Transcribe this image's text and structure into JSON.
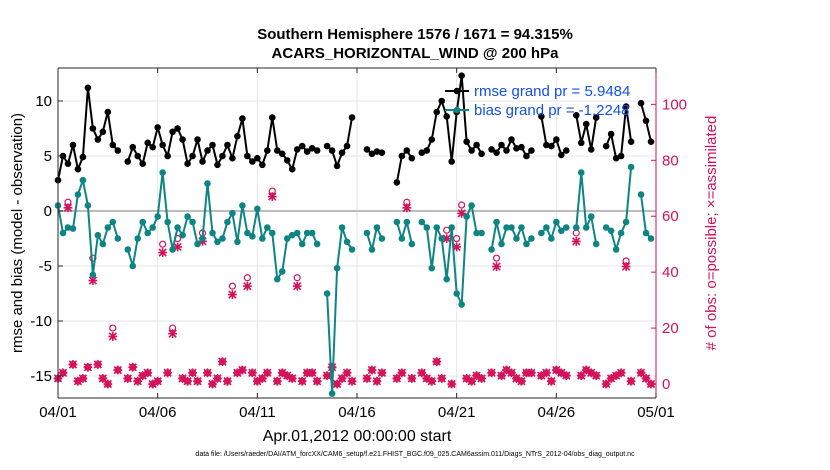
{
  "chart_data": {
    "type": "line",
    "title": "Southern Hemisphere 1576 / 1671 = 94.315%",
    "subtitle": "ACARS_HORIZONTAL_WIND @ 200 hPa",
    "xlabel": "Apr.01,2012 00:00:00 start",
    "ylabel_left": "rmse and bias (model - observation)",
    "ylabel_right": "# of obs: o=possible; ×=assimilated",
    "footnote": "data file: /Users/raeder/DAI/ATM_forcXX/CAM6_setup/f.e21.FHIST_BGC.f09_025.CAM6assim.011/Diags_NTrS_2012-04/obs_diag_output.nc",
    "x_ticks": [
      "04/01",
      "04/06",
      "04/11",
      "04/16",
      "04/21",
      "04/26",
      "05/01"
    ],
    "x_range_days": [
      0,
      30
    ],
    "ylim_left": [
      -17,
      13
    ],
    "yticks_left": [
      -15,
      -10,
      -5,
      0,
      5,
      10
    ],
    "ylim_right": [
      -5,
      113
    ],
    "yticks_right": [
      0,
      20,
      40,
      60,
      80,
      100
    ],
    "grid": true,
    "legend_position": "top-right",
    "colors": {
      "rmse": "#000000",
      "bias": "#0e8583",
      "obs": "#d4115a",
      "zero_line": "#bdbdbd"
    },
    "legend": [
      "rmse grand pr = 5.9484",
      "bias grand pr = -1.2248"
    ],
    "series": [
      {
        "name": "rmse grand pr = 5.9484",
        "axis": "left",
        "x": [
          0.0,
          0.25,
          0.5,
          0.75,
          1.0,
          1.25,
          1.5,
          1.75,
          2.0,
          2.25,
          2.5,
          2.75,
          3.0,
          3.25,
          3.5,
          3.75,
          4.0,
          4.25,
          4.5,
          4.75,
          5.0,
          5.25,
          5.5,
          5.75,
          6.0,
          6.25,
          6.5,
          6.75,
          7.0,
          7.25,
          7.5,
          7.75,
          8.0,
          8.25,
          8.5,
          8.75,
          9.0,
          9.25,
          9.5,
          9.75,
          10.0,
          10.25,
          10.5,
          10.75,
          11.0,
          11.25,
          11.5,
          11.75,
          12.0,
          12.25,
          12.5,
          12.75,
          13.0,
          13.25,
          13.5,
          13.75,
          14.0,
          14.25,
          14.5,
          14.75,
          15.0,
          15.25,
          15.5,
          15.75,
          16.0,
          16.25,
          16.5,
          16.75,
          17.0,
          17.25,
          17.5,
          17.75,
          18.0,
          18.25,
          18.5,
          18.75,
          19.0,
          19.25,
          19.5,
          19.75,
          20.0,
          20.25,
          20.5,
          20.75,
          21.0,
          21.25,
          21.5,
          21.75,
          22.0,
          22.25,
          22.5,
          22.75,
          23.0,
          23.25,
          23.5,
          23.75,
          24.0,
          24.25,
          24.5,
          24.75,
          25.0,
          25.25,
          25.5,
          25.75,
          26.0,
          26.25,
          26.5,
          26.75,
          27.0,
          27.25,
          27.5,
          27.75,
          28.0,
          28.25,
          28.5,
          28.75,
          29.0,
          29.25,
          29.5,
          29.75
        ],
        "y": [
          2.8,
          5.0,
          4.3,
          6.0,
          3.8,
          4.9,
          11.2,
          7.5,
          6.5,
          7.2,
          9.0,
          6.0,
          5.5,
          null,
          4.5,
          5.8,
          5.0,
          4.3,
          6.2,
          5.8,
          7.6,
          6.0,
          5.0,
          7.2,
          7.5,
          6.5,
          4.3,
          5.0,
          6.5,
          4.5,
          5.5,
          6.0,
          4.2,
          5.0,
          6.0,
          4.8,
          6.8,
          8.4,
          5.0,
          4.5,
          4.8,
          4.2,
          5.5,
          8.5,
          5.5,
          5.2,
          4.6,
          3.8,
          5.6,
          5.9,
          5.4,
          5.7,
          5.5,
          null,
          5.9,
          5.5,
          4.1,
          5.3,
          5.9,
          8.5,
          null,
          null,
          5.6,
          5.2,
          5.4,
          5.3,
          null,
          null,
          2.6,
          5.0,
          5.5,
          4.8,
          null,
          5.3,
          5.5,
          6.5,
          9.0,
          10.0,
          8.6,
          4.5,
          9.0,
          12.3,
          6.3,
          5.5,
          6.0,
          5.2,
          null,
          5.6,
          5.3,
          6.0,
          5.5,
          6.5,
          5.7,
          5.8,
          5.0,
          5.5,
          null,
          8.6,
          6.0,
          5.9,
          6.5,
          5.1,
          5.5,
          null,
          8.7,
          6.2,
          7.9,
          5.6,
          8.5,
          null,
          5.9,
          7.0,
          4.8,
          5.0,
          9.5,
          6.3,
          null,
          9.8,
          8.2,
          6.3
        ]
      },
      {
        "name": "bias grand pr = -1.2248",
        "axis": "left",
        "x": [
          0.0,
          0.25,
          0.5,
          0.75,
          1.0,
          1.25,
          1.5,
          1.75,
          2.0,
          2.25,
          2.5,
          2.75,
          3.0,
          3.25,
          3.5,
          3.75,
          4.0,
          4.25,
          4.5,
          4.75,
          5.0,
          5.25,
          5.5,
          5.75,
          6.0,
          6.25,
          6.5,
          6.75,
          7.0,
          7.25,
          7.5,
          7.75,
          8.0,
          8.25,
          8.5,
          8.75,
          9.0,
          9.25,
          9.5,
          9.75,
          10.0,
          10.25,
          10.5,
          10.75,
          11.0,
          11.25,
          11.5,
          11.75,
          12.0,
          12.25,
          12.5,
          12.75,
          13.0,
          13.25,
          13.5,
          13.75,
          14.0,
          14.25,
          14.5,
          14.75,
          15.0,
          15.25,
          15.5,
          15.75,
          16.0,
          16.25,
          16.5,
          16.75,
          17.0,
          17.25,
          17.5,
          17.75,
          18.0,
          18.25,
          18.5,
          18.75,
          19.0,
          19.25,
          19.5,
          19.75,
          20.0,
          20.25,
          20.5,
          20.75,
          21.0,
          21.25,
          21.5,
          21.75,
          22.0,
          22.25,
          22.5,
          22.75,
          23.0,
          23.25,
          23.5,
          23.75,
          24.0,
          24.25,
          24.5,
          24.75,
          25.0,
          25.25,
          25.5,
          25.75,
          26.0,
          26.25,
          26.5,
          26.75,
          27.0,
          27.25,
          27.5,
          27.75,
          28.0,
          28.25,
          28.5,
          28.75,
          29.0,
          29.25,
          29.5,
          29.75
        ],
        "y": [
          0.5,
          -2.0,
          -1.5,
          -1.6,
          1.5,
          2.8,
          0.5,
          -5.8,
          -2.2,
          -3.0,
          -1.5,
          -1.0,
          -2.5,
          null,
          -3.5,
          -5.0,
          -2.5,
          -1.0,
          -2.0,
          -1.5,
          -0.5,
          3.5,
          -1.0,
          -3.5,
          -1.5,
          -2.2,
          -0.5,
          -1.0,
          -3.0,
          -2.5,
          2.5,
          -2.0,
          -2.8,
          -2.5,
          -1.0,
          -0.2,
          -2.8,
          0.5,
          -2.0,
          -2.3,
          0.2,
          -2.5,
          -1.5,
          -2.0,
          -6.2,
          -5.5,
          -2.5,
          -2.2,
          -2.0,
          -3.0,
          -2.0,
          -2.0,
          -3.0,
          null,
          -7.5,
          -16.6,
          -5.2,
          -1.5,
          -2.8,
          -3.5,
          null,
          null,
          -2.0,
          -3.5,
          -1.5,
          -2.5,
          null,
          null,
          -1.0,
          -2.5,
          -1.0,
          -3.0,
          null,
          -1.0,
          -1.5,
          -5.2,
          -1.5,
          -2.5,
          -6.2,
          -1.5,
          -7.5,
          -8.5,
          -0.5,
          0.5,
          -2.0,
          -2.0,
          null,
          -3.5,
          -1.0,
          -3.0,
          -1.5,
          -1.5,
          -2.5,
          -1.5,
          -3.0,
          -2.5,
          null,
          -2.0,
          -1.5,
          -2.5,
          -1.0,
          -1.8,
          -1.5,
          null,
          -1.5,
          3.5,
          -1.5,
          -0.5,
          -3.0,
          null,
          -1.5,
          -1.8,
          -3.5,
          -2.0,
          -1.0,
          4.0,
          null,
          1.5,
          -2.0,
          -2.5
        ]
      },
      {
        "name": "",
        "kind": "possible (o)",
        "axis": "right",
        "x": [
          0.0,
          0.25,
          0.5,
          0.75,
          1.0,
          1.25,
          1.5,
          1.75,
          2.0,
          2.25,
          2.5,
          2.75,
          3.0,
          3.25,
          3.5,
          3.75,
          4.0,
          4.25,
          4.5,
          4.75,
          5.0,
          5.25,
          5.5,
          5.75,
          6.0,
          6.25,
          6.5,
          6.75,
          7.0,
          7.25,
          7.5,
          7.75,
          8.0,
          8.25,
          8.5,
          8.75,
          9.0,
          9.25,
          9.5,
          9.75,
          10.0,
          10.25,
          10.5,
          10.75,
          11.0,
          11.25,
          11.5,
          11.75,
          12.0,
          12.25,
          12.5,
          12.75,
          13.0,
          13.25,
          13.5,
          13.75,
          14.0,
          14.25,
          14.5,
          14.75,
          15.0,
          15.25,
          15.5,
          15.75,
          16.0,
          16.25,
          16.5,
          16.75,
          17.0,
          17.25,
          17.5,
          17.75,
          18.0,
          18.25,
          18.5,
          18.75,
          19.0,
          19.25,
          19.5,
          19.75,
          20.0,
          20.25,
          20.5,
          20.75,
          21.0,
          21.25,
          21.5,
          21.75,
          22.0,
          22.25,
          22.5,
          22.75,
          23.0,
          23.25,
          23.5,
          23.75,
          24.0,
          24.25,
          24.5,
          24.75,
          25.0,
          25.25,
          25.5,
          25.75,
          26.0,
          26.25,
          26.5,
          26.75,
          27.0,
          27.25,
          27.5,
          27.75,
          28.0,
          28.25,
          28.5,
          28.75,
          29.0,
          29.25,
          29.5,
          29.75
        ],
        "y": [
          2,
          4,
          65,
          7,
          1,
          2,
          6,
          45,
          7,
          2,
          0,
          20,
          5,
          null,
          2,
          6,
          1,
          3,
          4,
          0,
          1,
          50,
          4,
          20,
          52,
          2,
          1,
          4,
          1,
          54,
          4,
          0,
          2,
          8,
          1,
          35,
          4,
          5,
          38,
          4,
          1,
          2,
          4,
          69,
          1,
          4,
          3,
          2,
          38,
          1,
          4,
          4,
          1,
          null,
          3,
          6,
          0,
          2,
          4,
          1,
          null,
          null,
          2,
          5,
          1,
          4,
          null,
          null,
          2,
          4,
          65,
          2,
          null,
          4,
          2,
          1,
          8,
          2,
          55,
          0,
          52,
          64,
          2,
          1,
          3,
          2,
          null,
          4,
          45,
          3,
          5,
          4,
          2,
          1,
          4,
          4,
          null,
          3,
          4,
          1,
          5,
          4,
          3,
          null,
          54,
          3,
          5,
          4,
          3,
          null,
          0,
          2,
          3,
          4,
          44,
          1,
          null,
          4,
          2,
          0
        ]
      },
      {
        "name": "",
        "kind": "assimilated (×)",
        "axis": "right",
        "x": [
          0.0,
          0.25,
          0.5,
          0.75,
          1.0,
          1.25,
          1.5,
          1.75,
          2.0,
          2.25,
          2.5,
          2.75,
          3.0,
          3.25,
          3.5,
          3.75,
          4.0,
          4.25,
          4.5,
          4.75,
          5.0,
          5.25,
          5.5,
          5.75,
          6.0,
          6.25,
          6.5,
          6.75,
          7.0,
          7.25,
          7.5,
          7.75,
          8.0,
          8.25,
          8.5,
          8.75,
          9.0,
          9.25,
          9.5,
          9.75,
          10.0,
          10.25,
          10.5,
          10.75,
          11.0,
          11.25,
          11.5,
          11.75,
          12.0,
          12.25,
          12.5,
          12.75,
          13.0,
          13.25,
          13.5,
          13.75,
          14.0,
          14.25,
          14.5,
          14.75,
          15.0,
          15.25,
          15.5,
          15.75,
          16.0,
          16.25,
          16.5,
          16.75,
          17.0,
          17.25,
          17.5,
          17.75,
          18.0,
          18.25,
          18.5,
          18.75,
          19.0,
          19.25,
          19.5,
          19.75,
          20.0,
          20.25,
          20.5,
          20.75,
          21.0,
          21.25,
          21.5,
          21.75,
          22.0,
          22.25,
          22.5,
          22.75,
          23.0,
          23.25,
          23.5,
          23.75,
          24.0,
          24.25,
          24.5,
          24.75,
          25.0,
          25.25,
          25.5,
          25.75,
          26.0,
          26.25,
          26.5,
          26.75,
          27.0,
          27.25,
          27.5,
          27.75,
          28.0,
          28.25,
          28.5,
          28.75,
          29.0,
          29.25,
          29.5,
          29.75
        ],
        "y": [
          2,
          4,
          63,
          7,
          1,
          2,
          6,
          37,
          7,
          2,
          0,
          17,
          5,
          null,
          2,
          6,
          1,
          3,
          4,
          0,
          1,
          47,
          4,
          18,
          49,
          2,
          1,
          4,
          1,
          51,
          4,
          0,
          2,
          8,
          1,
          32,
          4,
          5,
          35,
          4,
          1,
          2,
          4,
          67,
          1,
          4,
          3,
          2,
          35,
          1,
          4,
          4,
          1,
          null,
          3,
          6,
          0,
          2,
          4,
          1,
          null,
          null,
          2,
          5,
          1,
          4,
          null,
          null,
          2,
          4,
          63,
          2,
          null,
          4,
          2,
          1,
          8,
          2,
          52,
          0,
          49,
          61,
          2,
          1,
          3,
          2,
          null,
          4,
          42,
          3,
          5,
          4,
          2,
          1,
          4,
          4,
          null,
          3,
          4,
          1,
          5,
          4,
          3,
          null,
          51,
          3,
          5,
          4,
          3,
          null,
          0,
          2,
          3,
          4,
          42,
          1,
          null,
          4,
          2,
          0
        ]
      }
    ]
  }
}
